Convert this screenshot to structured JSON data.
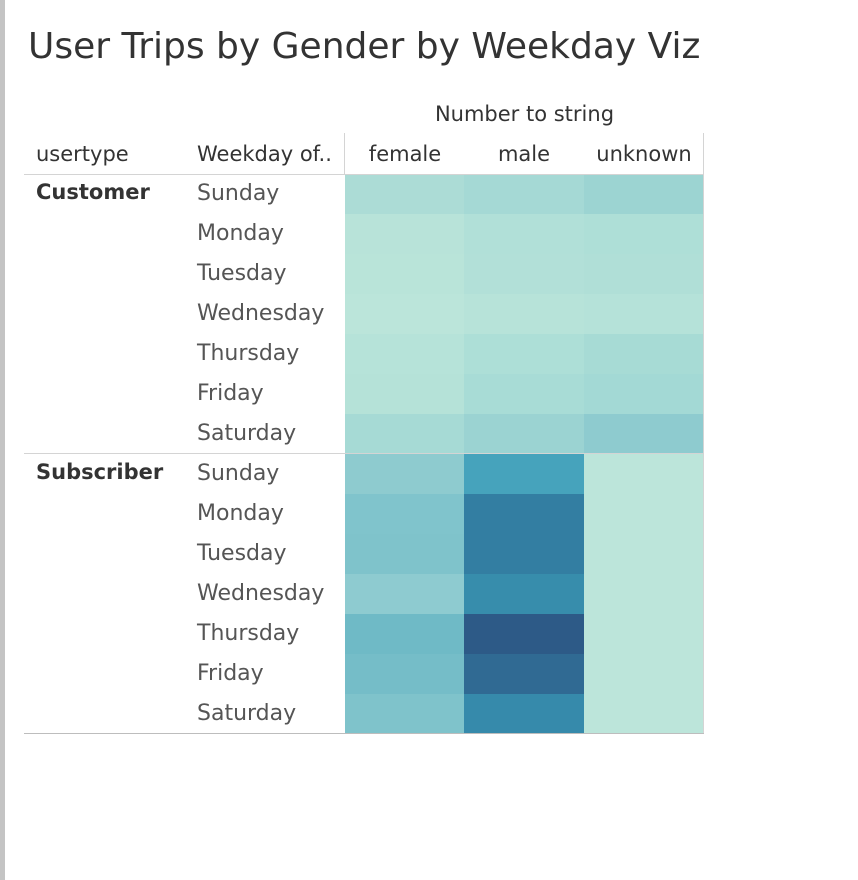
{
  "title": "User Trips by Gender by Weekday Viz",
  "chart_data": {
    "type": "heatmap",
    "title": "User Trips by Gender by Weekday Viz",
    "column_group_label": "Number to string",
    "row_headers": [
      "usertype",
      "Weekday of.."
    ],
    "columns": [
      "female",
      "male",
      "unknown"
    ],
    "groups": [
      {
        "name": "Customer",
        "rows": [
          "Sunday",
          "Monday",
          "Tuesday",
          "Wednesday",
          "Thursday",
          "Friday",
          "Saturday"
        ],
        "colors": [
          [
            "#acdcd6",
            "#a5d9d5",
            "#9cd4d2"
          ],
          [
            "#b8e3d9",
            "#b1e0d8",
            "#aedfd7"
          ],
          [
            "#b9e4d9",
            "#b2e0d8",
            "#b0dfd7"
          ],
          [
            "#bbe5da",
            "#b7e3d9",
            "#b5e2d9"
          ],
          [
            "#b6e3d9",
            "#addfd7",
            "#a7dbd5"
          ],
          [
            "#b5e2d8",
            "#a8dcd6",
            "#a3d9d5"
          ],
          [
            "#a6dad5",
            "#9bd3d2",
            "#8ecbcf"
          ]
        ]
      },
      {
        "name": "Subscriber",
        "rows": [
          "Sunday",
          "Monday",
          "Tuesday",
          "Wednesday",
          "Thursday",
          "Friday",
          "Saturday"
        ],
        "colors": [
          [
            "#8ecbcf",
            "#46a3bc",
            "#bce5da"
          ],
          [
            "#80c4cc",
            "#337ea2",
            "#bce5da"
          ],
          [
            "#7fc3cb",
            "#337ea2",
            "#bce5da"
          ],
          [
            "#8ecbd0",
            "#378dac",
            "#bce5da"
          ],
          [
            "#6fbac6",
            "#2d5a87",
            "#bce5da"
          ],
          [
            "#75bdc8",
            "#306a93",
            "#bce5da"
          ],
          [
            "#7fc3cb",
            "#368aab",
            "#bce5da"
          ]
        ]
      }
    ]
  }
}
